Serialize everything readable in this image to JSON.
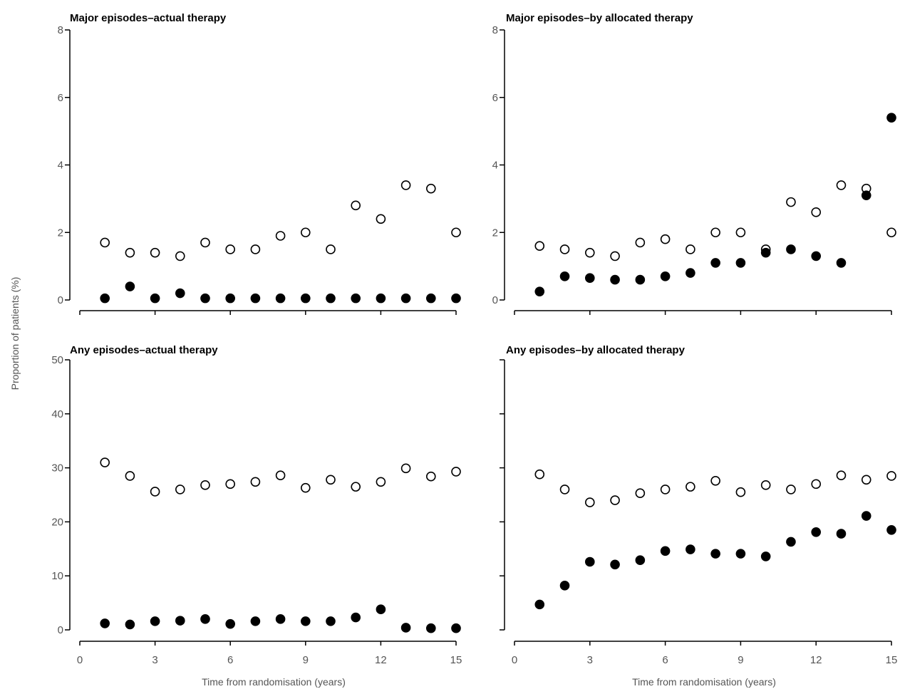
{
  "figure": {
    "ylabel": "Proportion of patients (%)",
    "xlabel": "Time from randomisation (years)"
  },
  "chart_data": [
    {
      "type": "scatter",
      "title": "Major episodes–actual therapy",
      "xlabel": "",
      "ylabel": "",
      "xlim": [
        0,
        15
      ],
      "ylim": [
        0,
        8
      ],
      "xticks": [
        0,
        3,
        6,
        9,
        12,
        15
      ],
      "yticks": [
        0,
        2,
        4,
        6,
        8
      ],
      "x_tick_labels_visible": false,
      "series": [
        {
          "marker": "open-circle",
          "x": [
            1,
            2,
            3,
            4,
            5,
            6,
            7,
            8,
            9,
            10,
            11,
            12,
            13,
            14,
            15
          ],
          "values": [
            1.7,
            1.4,
            1.4,
            1.3,
            1.7,
            1.5,
            1.5,
            1.9,
            2.0,
            1.5,
            2.8,
            2.4,
            3.4,
            3.3,
            2.0
          ]
        },
        {
          "marker": "filled-circle",
          "x": [
            1,
            2,
            3,
            4,
            5,
            6,
            7,
            8,
            9,
            10,
            11,
            12,
            13,
            14,
            15
          ],
          "values": [
            0.05,
            0.4,
            0.05,
            0.2,
            0.05,
            0.05,
            0.05,
            0.05,
            0.05,
            0.05,
            0.05,
            0.05,
            0.05,
            0.05,
            0.05
          ]
        }
      ]
    },
    {
      "type": "scatter",
      "title": "Major episodes–by allocated therapy",
      "xlabel": "",
      "ylabel": "",
      "xlim": [
        0,
        15
      ],
      "ylim": [
        0,
        8
      ],
      "xticks": [
        0,
        3,
        6,
        9,
        12,
        15
      ],
      "yticks": [
        0,
        2,
        4,
        6,
        8
      ],
      "x_tick_labels_visible": false,
      "series": [
        {
          "marker": "open-circle",
          "x": [
            1,
            2,
            3,
            4,
            5,
            6,
            7,
            8,
            9,
            10,
            11,
            12,
            13,
            14,
            15
          ],
          "values": [
            1.6,
            1.5,
            1.4,
            1.3,
            1.7,
            1.8,
            1.5,
            2.0,
            2.0,
            1.5,
            2.9,
            2.6,
            3.4,
            3.3,
            2.0
          ]
        },
        {
          "marker": "filled-circle",
          "x": [
            1,
            2,
            3,
            4,
            5,
            6,
            7,
            8,
            9,
            10,
            11,
            12,
            13,
            14,
            15
          ],
          "values": [
            0.25,
            0.7,
            0.65,
            0.6,
            0.6,
            0.7,
            0.8,
            1.1,
            1.1,
            1.4,
            1.5,
            1.3,
            1.1,
            3.1,
            5.4
          ]
        }
      ]
    },
    {
      "type": "scatter",
      "title": "Any episodes–actual therapy",
      "xlabel": "",
      "ylabel": "",
      "xlim": [
        0,
        15
      ],
      "ylim": [
        0,
        50
      ],
      "xticks": [
        0,
        3,
        6,
        9,
        12,
        15
      ],
      "yticks": [
        0,
        10,
        20,
        30,
        40,
        50
      ],
      "x_tick_labels_visible": true,
      "series": [
        {
          "marker": "open-circle",
          "x": [
            1,
            2,
            3,
            4,
            5,
            6,
            7,
            8,
            9,
            10,
            11,
            12,
            13,
            14,
            15
          ],
          "values": [
            31,
            28.5,
            25.6,
            26,
            26.8,
            27,
            27.4,
            28.6,
            26.3,
            27.8,
            26.5,
            27.4,
            29.9,
            28.4,
            29.3
          ]
        },
        {
          "marker": "filled-circle",
          "x": [
            1,
            2,
            3,
            4,
            5,
            6,
            7,
            8,
            9,
            10,
            11,
            12,
            13,
            14,
            15
          ],
          "values": [
            1.2,
            1.0,
            1.6,
            1.7,
            2.0,
            1.1,
            1.6,
            2.0,
            1.6,
            1.6,
            2.3,
            3.8,
            0.4,
            0.3,
            0.3
          ]
        }
      ]
    },
    {
      "type": "scatter",
      "title": "Any episodes–by allocated therapy",
      "xlabel": "",
      "ylabel": "",
      "xlim": [
        0,
        15
      ],
      "ylim": [
        0,
        50
      ],
      "xticks": [
        0,
        3,
        6,
        9,
        12,
        15
      ],
      "yticks": [
        0,
        10,
        20,
        30,
        40,
        50
      ],
      "x_tick_labels_visible": true,
      "y_tick_labels_visible": false,
      "series": [
        {
          "marker": "open-circle",
          "x": [
            1,
            2,
            3,
            4,
            5,
            6,
            7,
            8,
            9,
            10,
            11,
            12,
            13,
            14,
            15
          ],
          "values": [
            28.8,
            26,
            23.6,
            24,
            25.3,
            26,
            26.5,
            27.6,
            25.5,
            26.8,
            26,
            27,
            28.6,
            27.8,
            28.5
          ]
        },
        {
          "marker": "filled-circle",
          "x": [
            1,
            2,
            3,
            4,
            5,
            6,
            7,
            8,
            9,
            10,
            11,
            12,
            13,
            14,
            15
          ],
          "values": [
            4.7,
            8.2,
            12.6,
            12.1,
            12.9,
            14.6,
            14.9,
            14.1,
            14.1,
            13.6,
            16.3,
            18.1,
            17.8,
            21.1,
            18.5
          ]
        }
      ]
    }
  ]
}
